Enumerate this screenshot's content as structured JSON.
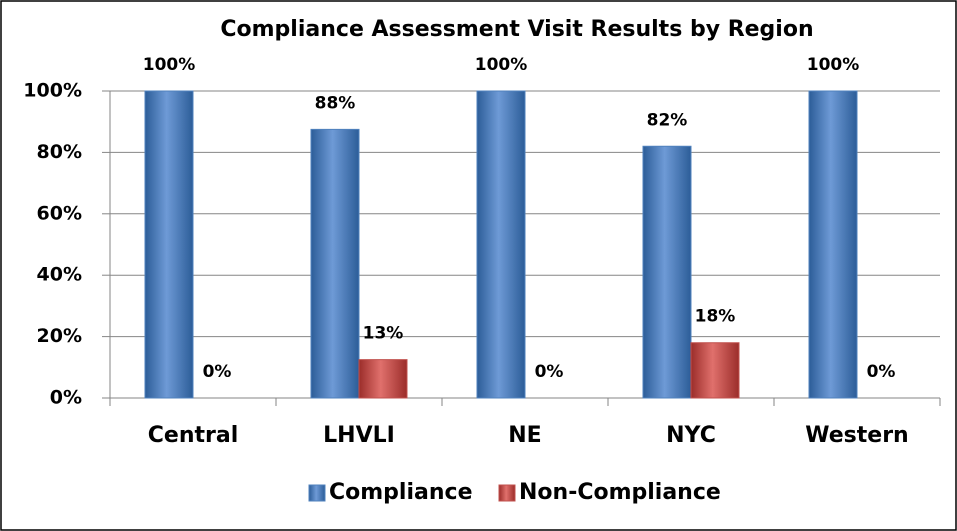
{
  "chart_data": {
    "type": "bar",
    "title": "Compliance Assessment Visit Results by Region",
    "categories": [
      "Central",
      "LHVLI",
      "NE",
      "NYC",
      "Western"
    ],
    "series": [
      {
        "name": "Compliance",
        "color": "#4f81bd",
        "values": [
          100,
          87.5,
          100,
          82,
          100
        ],
        "value_labels": [
          "100%",
          "88%",
          "100%",
          "82%",
          "100%"
        ]
      },
      {
        "name": "Non-Compliance",
        "color": "#c0504d",
        "values": [
          0,
          12.5,
          0,
          18,
          0
        ],
        "value_labels": [
          "0%",
          "13%",
          "0%",
          "18%",
          "0%"
        ]
      }
    ],
    "ylim": [
      0,
      100
    ],
    "yticks": [
      {
        "value": 0,
        "label": "0%"
      },
      {
        "value": 20,
        "label": "20%"
      },
      {
        "value": 40,
        "label": "40%"
      },
      {
        "value": 60,
        "label": "60%"
      },
      {
        "value": 80,
        "label": "80%"
      },
      {
        "value": 100,
        "label": "100%"
      }
    ],
    "grid": true,
    "legend": "bottom"
  }
}
